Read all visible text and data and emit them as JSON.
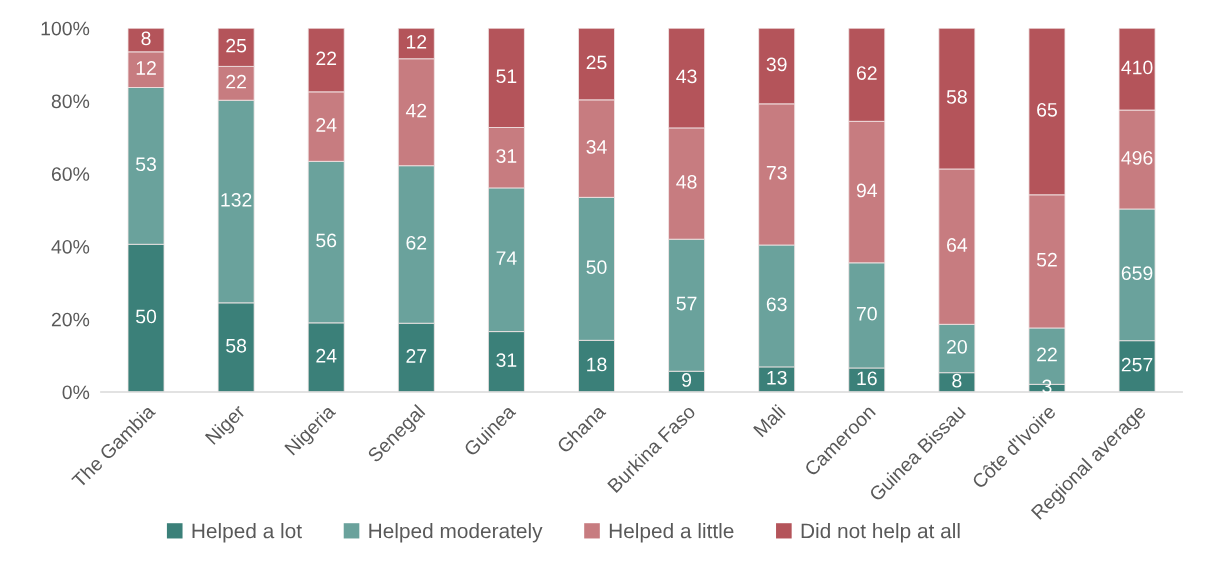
{
  "chart_data": {
    "type": "bar",
    "stacked": true,
    "categories": [
      "The Gambia",
      "Niger",
      "Nigeria",
      "Senegal",
      "Guinea",
      "Ghana",
      "Burkina Faso",
      "Mali",
      "Cameroon",
      "Guinea Bissau",
      "Côte d'Ivoire",
      "Regional average"
    ],
    "series": [
      {
        "name": "Helped a lot",
        "color": "#3b8079",
        "values": [
          40.6,
          24.5,
          19.0,
          18.9,
          16.6,
          14.2,
          5.7,
          6.9,
          6.6,
          5.3,
          2.1,
          14.1
        ]
      },
      {
        "name": "Helped moderately",
        "color": "#6aa29c",
        "values": [
          43.1,
          55.7,
          44.4,
          43.3,
          39.5,
          39.3,
          36.3,
          33.5,
          28.9,
          13.3,
          15.5,
          36.2
        ]
      },
      {
        "name": "Helped a little",
        "color": "#c77c80",
        "values": [
          9.8,
          9.3,
          19.1,
          29.4,
          16.6,
          26.8,
          30.6,
          38.8,
          38.9,
          42.7,
          36.6,
          27.2
        ]
      },
      {
        "name": "Did not help at all",
        "color": "#b4545a",
        "values": [
          6.5,
          10.5,
          17.5,
          8.4,
          27.3,
          19.7,
          27.4,
          20.8,
          25.6,
          38.7,
          45.8,
          22.5
        ]
      }
    ],
    "annotations": [
      "50",
      "53",
      "12",
      "8",
      "58",
      "132",
      "22",
      "25",
      "24",
      "56",
      "24",
      "22",
      "27",
      "62",
      "42",
      "12",
      "31",
      "74",
      "31",
      "51",
      "18",
      "50",
      "34",
      "25",
      "9",
      "57",
      "48",
      "43",
      "13",
      "63",
      "73",
      "39",
      "16",
      "70",
      "94",
      "62",
      "8",
      "20",
      "64",
      "58",
      "3",
      "22",
      "52",
      "65",
      "257",
      "659",
      "496",
      "410"
    ],
    "ylim": [
      0,
      100
    ],
    "yticks": [
      {
        "value": 0,
        "label": "0%"
      },
      {
        "value": 20,
        "label": "20%"
      },
      {
        "value": 40,
        "label": "40%"
      },
      {
        "value": 60,
        "label": "60%"
      },
      {
        "value": 80,
        "label": "80%"
      },
      {
        "value": 100,
        "label": "100%"
      }
    ],
    "legend": "bottom"
  }
}
